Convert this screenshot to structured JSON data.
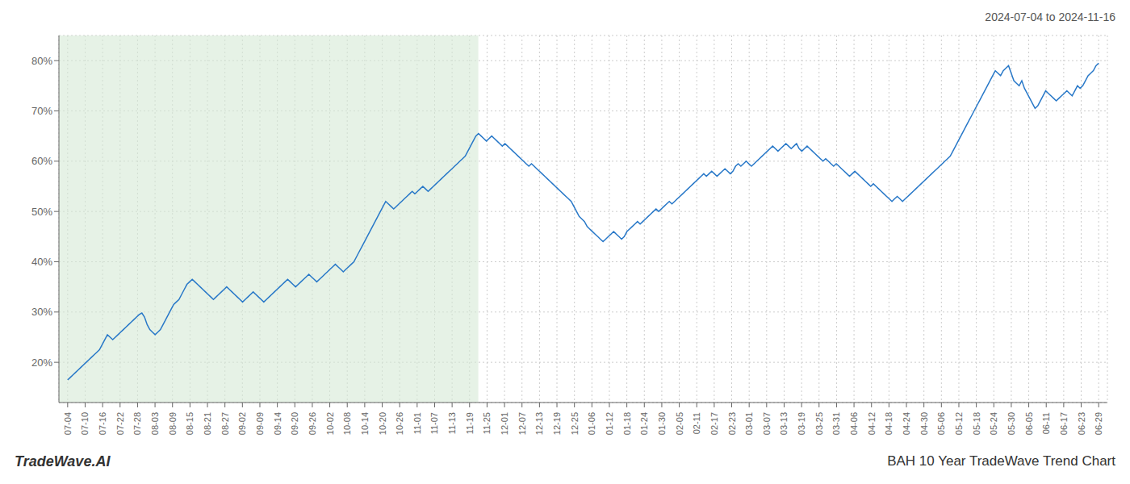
{
  "chart_data": {
    "type": "line",
    "title": "BAH 10 Year TradeWave Trend Chart",
    "subtitle": "2024-07-04 to 2024-11-16",
    "annotations": [
      "TradeWave.AI"
    ],
    "color": "#2878c8",
    "grid": true,
    "shade": {
      "x": [
        -0.5,
        23.5
      ],
      "color": "#d6ead6"
    },
    "xlim": [
      -0.5,
      59.5
    ],
    "xticks": [
      {
        "value": 0,
        "label": "07-04"
      },
      {
        "value": 1,
        "label": "07-10"
      },
      {
        "value": 2,
        "label": "07-16"
      },
      {
        "value": 3,
        "label": "07-22"
      },
      {
        "value": 4,
        "label": "07-28"
      },
      {
        "value": 5,
        "label": "08-03"
      },
      {
        "value": 6,
        "label": "08-09"
      },
      {
        "value": 7,
        "label": "08-15"
      },
      {
        "value": 8,
        "label": "08-21"
      },
      {
        "value": 9,
        "label": "08-27"
      },
      {
        "value": 10,
        "label": "09-02"
      },
      {
        "value": 11,
        "label": "09-09"
      },
      {
        "value": 12,
        "label": "09-14"
      },
      {
        "value": 13,
        "label": "09-20"
      },
      {
        "value": 14,
        "label": "09-26"
      },
      {
        "value": 15,
        "label": "10-02"
      },
      {
        "value": 16,
        "label": "10-08"
      },
      {
        "value": 17,
        "label": "10-14"
      },
      {
        "value": 18,
        "label": "10-20"
      },
      {
        "value": 19,
        "label": "10-26"
      },
      {
        "value": 20,
        "label": "11-01"
      },
      {
        "value": 21,
        "label": "11-07"
      },
      {
        "value": 22,
        "label": "11-13"
      },
      {
        "value": 23,
        "label": "11-19"
      },
      {
        "value": 24,
        "label": "11-25"
      },
      {
        "value": 25,
        "label": "12-01"
      },
      {
        "value": 26,
        "label": "12-07"
      },
      {
        "value": 27,
        "label": "12-13"
      },
      {
        "value": 28,
        "label": "12-19"
      },
      {
        "value": 29,
        "label": "12-25"
      },
      {
        "value": 30,
        "label": "01-06"
      },
      {
        "value": 31,
        "label": "01-12"
      },
      {
        "value": 32,
        "label": "01-18"
      },
      {
        "value": 33,
        "label": "01-24"
      },
      {
        "value": 34,
        "label": "01-30"
      },
      {
        "value": 35,
        "label": "02-05"
      },
      {
        "value": 36,
        "label": "02-11"
      },
      {
        "value": 37,
        "label": "02-17"
      },
      {
        "value": 38,
        "label": "02-23"
      },
      {
        "value": 39,
        "label": "03-01"
      },
      {
        "value": 40,
        "label": "03-07"
      },
      {
        "value": 41,
        "label": "03-13"
      },
      {
        "value": 42,
        "label": "03-19"
      },
      {
        "value": 43,
        "label": "03-25"
      },
      {
        "value": 44,
        "label": "03-31"
      },
      {
        "value": 45,
        "label": "04-06"
      },
      {
        "value": 46,
        "label": "04-12"
      },
      {
        "value": 47,
        "label": "04-18"
      },
      {
        "value": 48,
        "label": "04-24"
      },
      {
        "value": 49,
        "label": "04-30"
      },
      {
        "value": 50,
        "label": "05-06"
      },
      {
        "value": 51,
        "label": "05-12"
      },
      {
        "value": 52,
        "label": "05-18"
      },
      {
        "value": 53,
        "label": "05-24"
      },
      {
        "value": 54,
        "label": "05-30"
      },
      {
        "value": 55,
        "label": "06-05"
      },
      {
        "value": 56,
        "label": "06-11"
      },
      {
        "value": 57,
        "label": "06-17"
      },
      {
        "value": 58,
        "label": "06-23"
      },
      {
        "value": 59,
        "label": "06-29"
      }
    ],
    "ylim": [
      12,
      85
    ],
    "yticks": [
      {
        "value": 20,
        "label": "20%"
      },
      {
        "value": 30,
        "label": "30%"
      },
      {
        "value": 40,
        "label": "40%"
      },
      {
        "value": 50,
        "label": "50%"
      },
      {
        "value": 60,
        "label": "60%"
      },
      {
        "value": 70,
        "label": "70%"
      },
      {
        "value": 80,
        "label": "80%"
      }
    ],
    "x": [
      0,
      0.152,
      0.303,
      0.455,
      0.607,
      0.758,
      0.91,
      1.062,
      1.213,
      1.365,
      1.517,
      1.668,
      1.82,
      1.972,
      2.123,
      2.275,
      2.427,
      2.578,
      2.73,
      2.882,
      3.033,
      3.185,
      3.337,
      3.488,
      3.64,
      3.792,
      3.943,
      4.095,
      4.247,
      4.398,
      4.55,
      4.702,
      4.853,
      5.005,
      5.157,
      5.308,
      5.46,
      5.612,
      5.763,
      5.915,
      6.067,
      6.219,
      6.37,
      6.522,
      6.674,
      6.825,
      6.977,
      7.129,
      7.28,
      7.432,
      7.584,
      7.735,
      7.887,
      8.039,
      8.19,
      8.342,
      8.494,
      8.645,
      8.797,
      8.949,
      9.1,
      9.252,
      9.404,
      9.555,
      9.707,
      9.859,
      10.01,
      10.162,
      10.314,
      10.465,
      10.617,
      10.769,
      10.92,
      11.072,
      11.224,
      11.375,
      11.527,
      11.679,
      11.83,
      11.982,
      12.134,
      12.285,
      12.437,
      12.589,
      12.74,
      12.892,
      13.044,
      13.195,
      13.347,
      13.499,
      13.65,
      13.802,
      13.954,
      14.105,
      14.257,
      14.409,
      14.56,
      14.712,
      14.864,
      15.015,
      15.167,
      15.319,
      15.47,
      15.622,
      15.774,
      15.925,
      16.077,
      16.229,
      16.38,
      16.532,
      16.684,
      16.835,
      16.987,
      17.139,
      17.29,
      17.442,
      17.594,
      17.746,
      17.897,
      18.049,
      18.201,
      18.352,
      18.504,
      18.656,
      18.807,
      18.959,
      19.111,
      19.262,
      19.414,
      19.566,
      19.717,
      19.869,
      20.021,
      20.172,
      20.324,
      20.476,
      20.627,
      20.779,
      20.931,
      21.082,
      21.234,
      21.386,
      21.537,
      21.689,
      21.841,
      21.992,
      22.144,
      22.296,
      22.447,
      22.599,
      22.751,
      22.902,
      23.054,
      23.206,
      23.357,
      23.509,
      23.661,
      23.812,
      23.964,
      24.116,
      24.267,
      24.419,
      24.571,
      24.722,
      24.874,
      25.026,
      25.177,
      25.329,
      25.481,
      25.632,
      25.784,
      25.936,
      26.087,
      26.239,
      26.391,
      26.542,
      26.694,
      26.846,
      26.997,
      27.149,
      27.301,
      27.452,
      27.604,
      27.756,
      27.907,
      28.059,
      28.211,
      28.362,
      28.514,
      28.666,
      28.817,
      28.969,
      29.121,
      29.272,
      29.424,
      29.576,
      29.728,
      29.879,
      30.031,
      30.183,
      30.334,
      30.486,
      30.638,
      30.789,
      30.941,
      31.093,
      31.244,
      31.396,
      31.548,
      31.699,
      31.851,
      32.003,
      32.154,
      32.306,
      32.458,
      32.609,
      32.761,
      32.913,
      33.064,
      33.216,
      33.368,
      33.519,
      33.671,
      33.823,
      33.974,
      34.126,
      34.278,
      34.429,
      34.581,
      34.733,
      34.884,
      35.036,
      35.188,
      35.339,
      35.491,
      35.643,
      35.794,
      35.946,
      36.098,
      36.249,
      36.401,
      36.553,
      36.704,
      36.856,
      37.008,
      37.159,
      37.311,
      37.463,
      37.614,
      37.766,
      37.918,
      38.069,
      38.221,
      38.373,
      38.524,
      38.676,
      38.828,
      38.979,
      39.131,
      39.283,
      39.434,
      39.586,
      39.738,
      39.889,
      40.041,
      40.193,
      40.344,
      40.496,
      40.648,
      40.799,
      40.951,
      41.103,
      41.254,
      41.406,
      41.558,
      41.71,
      41.861,
      42.013,
      42.165,
      42.316,
      42.468,
      42.62,
      42.771,
      42.923,
      43.075,
      43.226,
      43.378,
      43.53,
      43.681,
      43.833,
      43.985,
      44.136,
      44.288,
      44.44,
      44.591,
      44.743,
      44.895,
      45.046,
      45.198,
      45.35,
      45.501,
      45.653,
      45.805,
      45.956,
      46.108,
      46.26,
      46.411,
      46.563,
      46.715,
      46.866,
      47.018,
      47.17,
      47.321,
      47.473,
      47.625,
      47.776,
      47.928,
      48.08,
      48.231,
      48.383,
      48.535,
      48.686,
      48.838,
      48.99,
      49.141,
      49.293,
      49.445,
      49.596,
      49.748,
      49.9,
      50.051,
      50.203,
      50.355,
      50.506,
      50.658,
      50.81,
      50.961,
      51.113,
      51.265,
      51.416,
      51.568,
      51.72,
      51.871,
      52.023,
      52.175,
      52.326,
      52.478,
      52.63,
      52.781,
      52.933,
      53.085,
      53.237,
      53.388,
      53.54,
      53.692,
      53.843,
      53.995,
      54.147,
      54.298,
      54.45,
      54.602,
      54.753,
      54.905,
      55.057,
      55.208,
      55.36,
      55.512,
      55.663,
      55.815,
      55.967,
      56.118,
      56.27,
      56.422,
      56.573,
      56.725,
      56.877,
      57.028,
      57.18,
      57.332,
      57.483,
      57.635,
      57.787,
      57.938,
      58.09,
      58.242,
      58.393,
      58.545,
      58.697,
      58.848,
      59
    ],
    "values": [
      16.5,
      17.0,
      17.5,
      18.0,
      18.5,
      19.0,
      19.5,
      20.0,
      20.5,
      21.0,
      21.5,
      22.0,
      22.5,
      23.5,
      24.5,
      25.5,
      25.0,
      24.5,
      25.0,
      25.5,
      26.0,
      26.5,
      27.0,
      27.5,
      28.0,
      28.5,
      29.0,
      29.5,
      29.8,
      29.0,
      27.5,
      26.5,
      26.0,
      25.5,
      26.0,
      26.5,
      27.5,
      28.5,
      29.5,
      30.5,
      31.5,
      32.0,
      32.5,
      33.5,
      34.5,
      35.5,
      36.0,
      36.5,
      36.0,
      35.5,
      35.0,
      34.5,
      34.0,
      33.5,
      33.0,
      32.5,
      33.0,
      33.5,
      34.0,
      34.5,
      35.0,
      34.5,
      34.0,
      33.5,
      33.0,
      32.5,
      32.0,
      32.5,
      33.0,
      33.5,
      34.0,
      33.5,
      33.0,
      32.5,
      32.0,
      32.5,
      33.0,
      33.5,
      34.0,
      34.5,
      35.0,
      35.5,
      36.0,
      36.5,
      36.0,
      35.5,
      35.0,
      35.5,
      36.0,
      36.5,
      37.0,
      37.5,
      37.0,
      36.5,
      36.0,
      36.5,
      37.0,
      37.5,
      38.0,
      38.5,
      39.0,
      39.5,
      39.0,
      38.5,
      38.0,
      38.5,
      39.0,
      39.5,
      40.0,
      41.0,
      42.0,
      43.0,
      44.0,
      45.0,
      46.0,
      47.0,
      48.0,
      49.0,
      50.0,
      51.0,
      52.0,
      51.5,
      51.0,
      50.5,
      51.0,
      51.5,
      52.0,
      52.5,
      53.0,
      53.5,
      54.0,
      53.5,
      54.0,
      54.5,
      55.0,
      54.5,
      54.0,
      54.5,
      55.0,
      55.5,
      56.0,
      56.5,
      57.0,
      57.5,
      58.0,
      58.5,
      59.0,
      59.5,
      60.0,
      60.5,
      61.0,
      62.0,
      63.0,
      64.0,
      65.0,
      65.5,
      65.0,
      64.5,
      64.0,
      64.5,
      65.0,
      64.5,
      64.0,
      63.5,
      63.0,
      63.5,
      63.0,
      62.5,
      62.0,
      61.5,
      61.0,
      60.5,
      60.0,
      59.5,
      59.0,
      59.5,
      59.0,
      58.5,
      58.0,
      57.5,
      57.0,
      56.5,
      56.0,
      55.5,
      55.0,
      54.5,
      54.0,
      53.5,
      53.0,
      52.5,
      52.0,
      51.0,
      50.0,
      49.0,
      48.5,
      48.0,
      47.0,
      46.5,
      46.0,
      45.5,
      45.0,
      44.5,
      44.0,
      44.5,
      45.0,
      45.5,
      46.0,
      45.5,
      45.0,
      44.5,
      45.0,
      46.0,
      46.5,
      47.0,
      47.5,
      48.0,
      47.5,
      48.0,
      48.5,
      49.0,
      49.5,
      50.0,
      50.5,
      50.0,
      50.5,
      51.0,
      51.5,
      52.0,
      51.5,
      52.0,
      52.5,
      53.0,
      53.5,
      54.0,
      54.5,
      55.0,
      55.5,
      56.0,
      56.5,
      57.0,
      57.5,
      57.0,
      57.5,
      58.0,
      57.5,
      57.0,
      57.5,
      58.0,
      58.5,
      58.0,
      57.5,
      58.0,
      59.0,
      59.5,
      59.0,
      59.5,
      60.0,
      59.5,
      59.0,
      59.5,
      60.0,
      60.5,
      61.0,
      61.5,
      62.0,
      62.5,
      63.0,
      62.5,
      62.0,
      62.5,
      63.0,
      63.5,
      63.0,
      62.5,
      63.0,
      63.5,
      62.5,
      62.0,
      62.5,
      63.0,
      62.5,
      62.0,
      61.5,
      61.0,
      60.5,
      60.0,
      60.5,
      60.0,
      59.5,
      59.0,
      59.5,
      59.0,
      58.5,
      58.0,
      57.5,
      57.0,
      57.5,
      58.0,
      57.5,
      57.0,
      56.5,
      56.0,
      55.5,
      55.0,
      55.5,
      55.0,
      54.5,
      54.0,
      53.5,
      53.0,
      52.5,
      52.0,
      52.5,
      53.0,
      52.5,
      52.0,
      52.5,
      53.0,
      53.5,
      54.0,
      54.5,
      55.0,
      55.5,
      56.0,
      56.5,
      57.0,
      57.5,
      58.0,
      58.5,
      59.0,
      59.5,
      60.0,
      60.5,
      61.0,
      62.0,
      63.0,
      64.0,
      65.0,
      66.0,
      67.0,
      68.0,
      69.0,
      70.0,
      71.0,
      72.0,
      73.0,
      74.0,
      75.0,
      76.0,
      77.0,
      78.0,
      77.5,
      77.0,
      78.0,
      78.5,
      79.0,
      77.5,
      76.0,
      75.5,
      75.0,
      76.0,
      74.5,
      73.5,
      72.5,
      71.5,
      70.5,
      71.0,
      72.0,
      73.0,
      74.0,
      73.5,
      73.0,
      72.5,
      72.0,
      72.5,
      73.0,
      73.5,
      74.0,
      73.5,
      73.0,
      74.0,
      75.0,
      74.5,
      75.0,
      76.0,
      77.0,
      77.5,
      78.0,
      79.0,
      79.5
    ]
  }
}
